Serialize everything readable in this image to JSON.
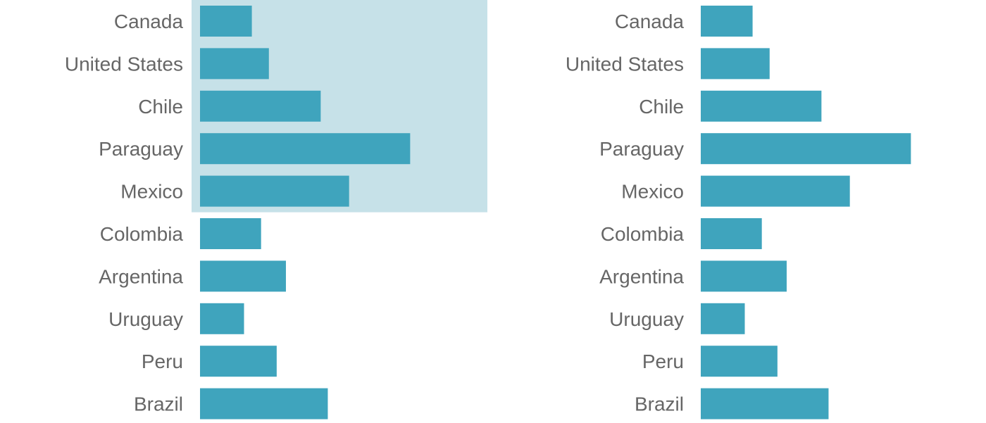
{
  "chart_data": [
    {
      "type": "bar",
      "orientation": "horizontal",
      "categories": [
        "Canada",
        "United States",
        "Chile",
        "Paraguay",
        "Mexico",
        "Colombia",
        "Argentina",
        "Uruguay",
        "Peru",
        "Brazil"
      ],
      "values": [
        7.3,
        9.7,
        17,
        29.6,
        21,
        8.6,
        12.1,
        6.2,
        10.8,
        18
      ],
      "highlight": {
        "categories": [
          "Canada",
          "United States",
          "Chile",
          "Paraguay",
          "Mexico"
        ],
        "color": "#c6e1e8"
      },
      "bar_color": "#3fa4bd",
      "label_color": "#666666",
      "xlim": [
        0,
        40
      ],
      "grid": false,
      "title": "",
      "xlabel": "",
      "ylabel": ""
    },
    {
      "type": "bar",
      "orientation": "horizontal",
      "categories": [
        "Canada",
        "United States",
        "Chile",
        "Paraguay",
        "Mexico",
        "Colombia",
        "Argentina",
        "Uruguay",
        "Peru",
        "Brazil"
      ],
      "values": [
        7.3,
        9.7,
        17,
        29.6,
        21,
        8.6,
        12.1,
        6.2,
        10.8,
        18
      ],
      "bar_color": "#3fa4bd",
      "label_color": "#666666",
      "xlim": [
        0,
        40
      ],
      "grid": false,
      "title": "",
      "xlabel": "",
      "ylabel": ""
    }
  ]
}
